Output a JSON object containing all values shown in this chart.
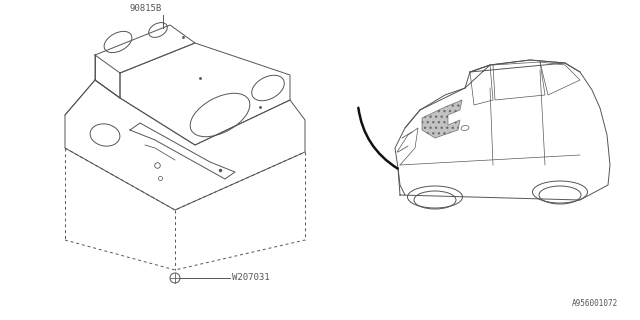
{
  "background_color": "#ffffff",
  "line_color": "#555555",
  "part_label_1": "90815B",
  "part_label_2": "W207031",
  "diagram_id": "A956001072",
  "lw": 0.7
}
